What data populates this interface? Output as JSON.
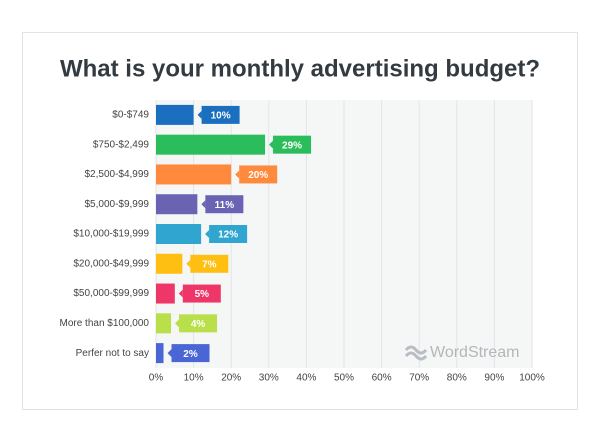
{
  "chart_data": {
    "type": "bar",
    "orientation": "horizontal",
    "title": "What is your monthly advertising budget?",
    "categories": [
      "$0-$749",
      "$750-$2,499",
      "$2,500-$4,999",
      "$5,000-$9,999",
      "$10,000-$19,999",
      "$20,000-$49,999",
      "$50,000-$99,999",
      "More than $100,000",
      "Perfer not to say"
    ],
    "values": [
      10,
      29,
      20,
      11,
      12,
      7,
      5,
      4,
      2
    ],
    "value_labels": [
      "10%",
      "29%",
      "20%",
      "11%",
      "12%",
      "7%",
      "5%",
      "4%",
      "2%"
    ],
    "colors": [
      "#1b6fbf",
      "#2bbd5b",
      "#ff8a3d",
      "#6a63b3",
      "#2fa5cf",
      "#ffbe12",
      "#ef3669",
      "#b9df4a",
      "#4a66d5"
    ],
    "xlim": [
      0,
      100
    ],
    "xticks": [
      {
        "value": 0,
        "label": "0%"
      },
      {
        "value": 10,
        "label": "10%"
      },
      {
        "value": 20,
        "label": "20%"
      },
      {
        "value": 30,
        "label": "30%"
      },
      {
        "value": 40,
        "label": "40%"
      },
      {
        "value": 50,
        "label": "50%"
      },
      {
        "value": 60,
        "label": "60%"
      },
      {
        "value": 70,
        "label": "70%"
      },
      {
        "value": 80,
        "label": "80%"
      },
      {
        "value": 90,
        "label": "90%"
      },
      {
        "value": 100,
        "label": "100%"
      }
    ],
    "grid": true,
    "watermark": "WordStream"
  }
}
